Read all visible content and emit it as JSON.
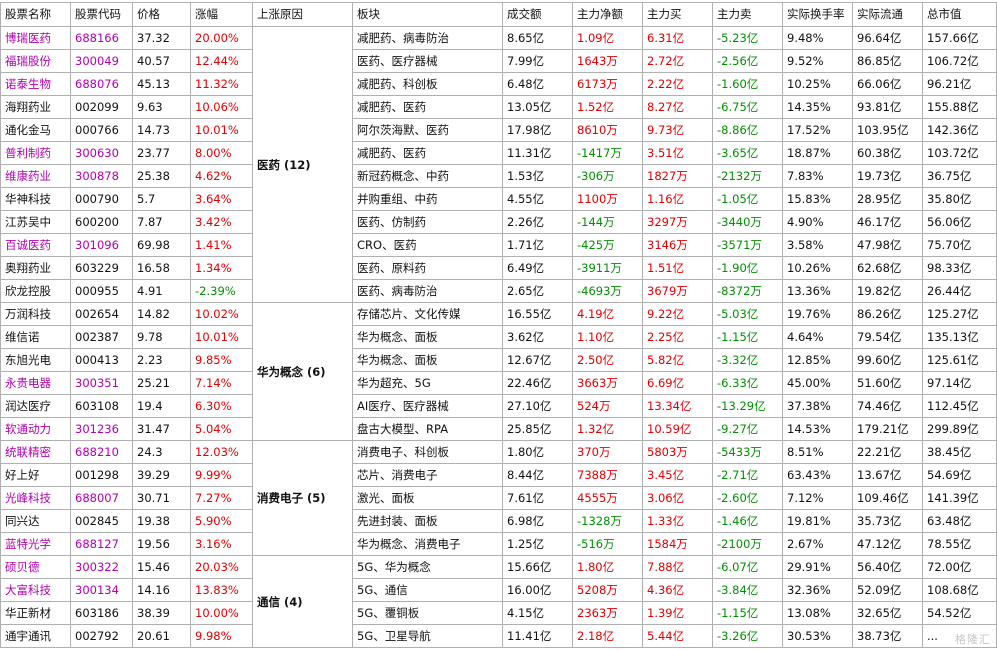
{
  "headers": [
    "股票名称",
    "股票代码",
    "价格",
    "涨幅",
    "上涨原因",
    "板块",
    "成交额",
    "主力净额",
    "主力买",
    "主力卖",
    "实际换手率",
    "实际流通",
    "总市值"
  ],
  "groups": [
    {
      "sector": "医药 (12)",
      "rows": [
        {
          "name": "博瑞医药",
          "name_color": "purple",
          "code": "688166",
          "price": "37.32",
          "change": "20.00%",
          "board": "减肥药、病毒防治",
          "turnover": "8.65亿",
          "net": "1.09亿",
          "buy": "6.31亿",
          "sell": "-5.23亿",
          "rate": "9.48%",
          "float": "96.64亿",
          "cap": "157.66亿"
        },
        {
          "name": "福瑞股份",
          "name_color": "purple",
          "code": "300049",
          "price": "40.57",
          "change": "12.44%",
          "board": "医药、医疗器械",
          "turnover": "7.99亿",
          "net": "1643万",
          "buy": "2.72亿",
          "sell": "-2.56亿",
          "rate": "9.52%",
          "float": "86.85亿",
          "cap": "106.72亿"
        },
        {
          "name": "诺泰生物",
          "name_color": "purple",
          "code": "688076",
          "price": "45.13",
          "change": "11.32%",
          "board": "减肥药、科创板",
          "turnover": "6.48亿",
          "net": "6173万",
          "buy": "2.22亿",
          "sell": "-1.60亿",
          "rate": "10.25%",
          "float": "66.06亿",
          "cap": "96.21亿"
        },
        {
          "name": "海翔药业",
          "name_color": "black",
          "code": "002099",
          "price": "9.63",
          "change": "10.06%",
          "board": "减肥药、医药",
          "turnover": "13.05亿",
          "net": "1.52亿",
          "buy": "8.27亿",
          "sell": "-6.75亿",
          "rate": "14.35%",
          "float": "93.81亿",
          "cap": "155.88亿"
        },
        {
          "name": "通化金马",
          "name_color": "black",
          "code": "000766",
          "price": "14.73",
          "change": "10.01%",
          "board": "阿尔茨海默、医药",
          "turnover": "17.98亿",
          "net": "8610万",
          "buy": "9.73亿",
          "sell": "-8.86亿",
          "rate": "17.52%",
          "float": "103.95亿",
          "cap": "142.36亿"
        },
        {
          "name": "普利制药",
          "name_color": "purple",
          "code": "300630",
          "price": "23.77",
          "change": "8.00%",
          "board": "减肥药、医药",
          "turnover": "11.31亿",
          "net": "-1417万",
          "buy": "3.51亿",
          "sell": "-3.65亿",
          "rate": "18.87%",
          "float": "60.38亿",
          "cap": "103.72亿"
        },
        {
          "name": "维康药业",
          "name_color": "purple",
          "code": "300878",
          "price": "25.38",
          "change": "4.62%",
          "board": "新冠药概念、中药",
          "turnover": "1.53亿",
          "net": "-306万",
          "buy": "1827万",
          "sell": "-2132万",
          "rate": "7.83%",
          "float": "19.73亿",
          "cap": "36.75亿"
        },
        {
          "name": "华神科技",
          "name_color": "black",
          "code": "000790",
          "price": "5.7",
          "change": "3.64%",
          "board": "并购重组、中药",
          "turnover": "4.55亿",
          "net": "1100万",
          "buy": "1.16亿",
          "sell": "-1.05亿",
          "rate": "15.83%",
          "float": "28.95亿",
          "cap": "35.80亿"
        },
        {
          "name": "江苏吴中",
          "name_color": "black",
          "code": "600200",
          "price": "7.87",
          "change": "3.42%",
          "board": "医药、仿制药",
          "turnover": "2.26亿",
          "net": "-144万",
          "buy": "3297万",
          "sell": "-3440万",
          "rate": "4.90%",
          "float": "46.17亿",
          "cap": "56.06亿"
        },
        {
          "name": "百诚医药",
          "name_color": "purple",
          "code": "301096",
          "price": "69.98",
          "change": "1.41%",
          "board": "CRO、医药",
          "turnover": "1.71亿",
          "net": "-425万",
          "buy": "3146万",
          "sell": "-3571万",
          "rate": "3.58%",
          "float": "47.98亿",
          "cap": "75.70亿"
        },
        {
          "name": "奥翔药业",
          "name_color": "black",
          "code": "603229",
          "price": "16.58",
          "change": "1.34%",
          "board": "医药、原料药",
          "turnover": "6.49亿",
          "net": "-3911万",
          "buy": "1.51亿",
          "sell": "-1.90亿",
          "rate": "10.26%",
          "float": "62.68亿",
          "cap": "98.33亿"
        },
        {
          "name": "欣龙控股",
          "name_color": "black",
          "code": "000955",
          "price": "4.91",
          "change": "-2.39%",
          "board": "医药、病毒防治",
          "turnover": "2.65亿",
          "net": "-4693万",
          "buy": "3679万",
          "sell": "-8372万",
          "rate": "13.36%",
          "float": "19.82亿",
          "cap": "26.44亿"
        }
      ]
    },
    {
      "sector": "华为概念 (6)",
      "rows": [
        {
          "name": "万润科技",
          "name_color": "black",
          "code": "002654",
          "price": "14.82",
          "change": "10.02%",
          "board": "存储芯片、文化传媒",
          "turnover": "16.55亿",
          "net": "4.19亿",
          "buy": "9.22亿",
          "sell": "-5.03亿",
          "rate": "19.76%",
          "float": "86.26亿",
          "cap": "125.27亿"
        },
        {
          "name": "维信诺",
          "name_color": "black",
          "code": "002387",
          "price": "9.78",
          "change": "10.01%",
          "board": "华为概念、面板",
          "turnover": "3.62亿",
          "net": "1.10亿",
          "buy": "2.25亿",
          "sell": "-1.15亿",
          "rate": "4.64%",
          "float": "79.54亿",
          "cap": "135.13亿"
        },
        {
          "name": "东旭光电",
          "name_color": "black",
          "code": "000413",
          "price": "2.23",
          "change": "9.85%",
          "board": "华为概念、面板",
          "turnover": "12.67亿",
          "net": "2.50亿",
          "buy": "5.82亿",
          "sell": "-3.32亿",
          "rate": "12.85%",
          "float": "99.60亿",
          "cap": "125.61亿"
        },
        {
          "name": "永贵电器",
          "name_color": "purple",
          "code": "300351",
          "price": "25.21",
          "change": "7.14%",
          "board": "华为超充、5G",
          "turnover": "22.46亿",
          "net": "3663万",
          "buy": "6.69亿",
          "sell": "-6.33亿",
          "rate": "45.00%",
          "float": "51.60亿",
          "cap": "97.14亿"
        },
        {
          "name": "润达医疗",
          "name_color": "black",
          "code": "603108",
          "price": "19.4",
          "change": "6.30%",
          "board": "AI医疗、医疗器械",
          "turnover": "27.10亿",
          "net": "524万",
          "buy": "13.34亿",
          "sell": "-13.29亿",
          "rate": "37.38%",
          "float": "74.46亿",
          "cap": "112.45亿"
        },
        {
          "name": "软通动力",
          "name_color": "purple",
          "code": "301236",
          "price": "31.47",
          "change": "5.04%",
          "board": "盘古大模型、RPA",
          "turnover": "25.85亿",
          "net": "1.32亿",
          "buy": "10.59亿",
          "sell": "-9.27亿",
          "rate": "14.53%",
          "float": "179.21亿",
          "cap": "299.89亿"
        }
      ]
    },
    {
      "sector": "消费电子 (5)",
      "rows": [
        {
          "name": "统联精密",
          "name_color": "purple",
          "code": "688210",
          "price": "24.3",
          "change": "12.03%",
          "board": "消费电子、科创板",
          "turnover": "1.80亿",
          "net": "370万",
          "buy": "5803万",
          "sell": "-5433万",
          "rate": "8.51%",
          "float": "22.21亿",
          "cap": "38.45亿"
        },
        {
          "name": "好上好",
          "name_color": "black",
          "code": "001298",
          "price": "39.29",
          "change": "9.99%",
          "board": "芯片、消费电子",
          "turnover": "8.44亿",
          "net": "7388万",
          "buy": "3.45亿",
          "sell": "-2.71亿",
          "rate": "63.43%",
          "float": "13.67亿",
          "cap": "54.69亿"
        },
        {
          "name": "光峰科技",
          "name_color": "purple",
          "code": "688007",
          "price": "30.71",
          "change": "7.27%",
          "board": "激光、面板",
          "turnover": "7.61亿",
          "net": "4555万",
          "buy": "3.06亿",
          "sell": "-2.60亿",
          "rate": "7.12%",
          "float": "109.46亿",
          "cap": "141.39亿"
        },
        {
          "name": "同兴达",
          "name_color": "black",
          "code": "002845",
          "price": "19.38",
          "change": "5.90%",
          "board": "先进封装、面板",
          "turnover": "6.98亿",
          "net": "-1328万",
          "buy": "1.33亿",
          "sell": "-1.46亿",
          "rate": "19.81%",
          "float": "35.73亿",
          "cap": "63.48亿"
        },
        {
          "name": "蓝特光学",
          "name_color": "purple",
          "code": "688127",
          "price": "19.56",
          "change": "3.16%",
          "board": "华为概念、消费电子",
          "turnover": "1.25亿",
          "net": "-516万",
          "buy": "1584万",
          "sell": "-2100万",
          "rate": "2.67%",
          "float": "47.12亿",
          "cap": "78.55亿"
        }
      ]
    },
    {
      "sector": "通信 (4)",
      "rows": [
        {
          "name": "硕贝德",
          "name_color": "purple",
          "code": "300322",
          "price": "15.46",
          "change": "20.03%",
          "board": "5G、华为概念",
          "turnover": "15.66亿",
          "net": "1.80亿",
          "buy": "7.88亿",
          "sell": "-6.07亿",
          "rate": "29.91%",
          "float": "56.40亿",
          "cap": "72.00亿"
        },
        {
          "name": "大富科技",
          "name_color": "purple",
          "code": "300134",
          "price": "14.16",
          "change": "13.83%",
          "board": "5G、通信",
          "turnover": "16.00亿",
          "net": "5208万",
          "buy": "4.36亿",
          "sell": "-3.84亿",
          "rate": "32.36%",
          "float": "52.09亿",
          "cap": "108.68亿"
        },
        {
          "name": "华正新材",
          "name_color": "black",
          "code": "603186",
          "price": "38.39",
          "change": "10.00%",
          "board": "5G、覆铜板",
          "turnover": "4.15亿",
          "net": "2363万",
          "buy": "1.39亿",
          "sell": "-1.15亿",
          "rate": "13.08%",
          "float": "32.65亿",
          "cap": "54.52亿"
        },
        {
          "name": "通宇通讯",
          "name_color": "black",
          "code": "002792",
          "price": "20.61",
          "change": "9.98%",
          "board": "5G、卫星导航",
          "turnover": "11.41亿",
          "net": "2.18亿",
          "buy": "5.44亿",
          "sell": "-3.26亿",
          "rate": "30.53%",
          "float": "38.73亿",
          "cap": "..."
        }
      ]
    }
  ],
  "watermark": "格隆汇"
}
